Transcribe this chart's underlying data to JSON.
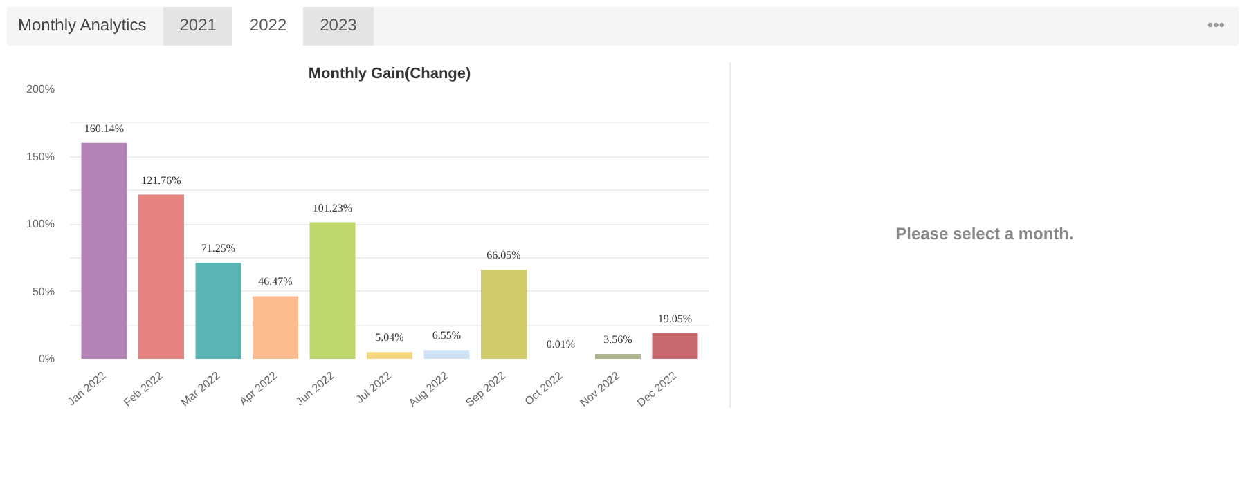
{
  "chart_data": {
    "type": "bar",
    "title": "Monthly Gain(Change)",
    "categories": [
      "Jan 2022",
      "Feb 2022",
      "Mar 2022",
      "Apr 2022",
      "Jun 2022",
      "Jul 2022",
      "Aug 2022",
      "Sep 2022",
      "Oct 2022",
      "Nov 2022",
      "Dec 2022"
    ],
    "values": [
      160.14,
      121.76,
      71.25,
      46.47,
      101.23,
      5.04,
      6.55,
      66.05,
      0.01,
      3.56,
      19.05
    ],
    "colors": [
      "#b384b5",
      "#e4837f",
      "#5ab5b4",
      "#fdbc8f",
      "#bcd86c",
      "#f5d77e",
      "#cfe2f5",
      "#d2cb6c",
      "#9ec2b5",
      "#aeb58e",
      "#c9686d"
    ],
    "value_labels": [
      "160.14%",
      "121.76%",
      "71.25%",
      "46.47%",
      "101.23%",
      "5.04%",
      "6.55%",
      "66.05%",
      "0.01%",
      "3.56%",
      "19.05%"
    ],
    "ylim": [
      0,
      200
    ],
    "yticks": [
      {
        "value": 0,
        "label": "0%"
      },
      {
        "value": 25,
        "label": null
      },
      {
        "value": 50,
        "label": "50%"
      },
      {
        "value": 75,
        "label": null
      },
      {
        "value": 100,
        "label": "100%"
      },
      {
        "value": 125,
        "label": null
      },
      {
        "value": 150,
        "label": "150%"
      },
      {
        "value": 175,
        "label": null
      },
      {
        "value": 200,
        "label": "200%"
      }
    ],
    "grid": "y",
    "annotations": [
      "Monthly Analytics",
      "2021",
      "2022",
      "2023",
      "Please select a month.",
      "•••"
    ]
  }
}
